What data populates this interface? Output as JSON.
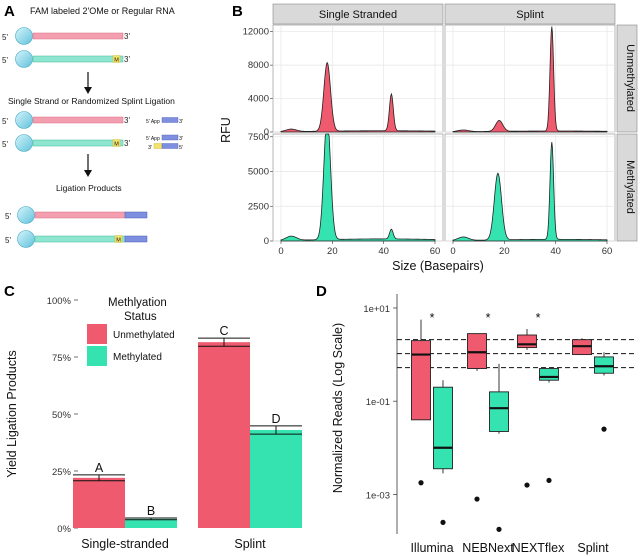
{
  "colors": {
    "unmethylated": "#ef5a6f",
    "methylated": "#35e3b1",
    "rna_pink": "#f49fb0",
    "rna_teal": "#8fe6d0",
    "bead": "#8fd6e8",
    "adapter": "#6f7fd6",
    "strip_bg": "#d9d9d9",
    "panel_bg": "#ffffff"
  },
  "panel_a": {
    "label": "A",
    "title": "FAM labeled 2'OMe or Regular RNA",
    "step2": "Single Strand or Randomized Splint Ligation",
    "step3": "Ligation Products",
    "five_prime": "5'",
    "three_prime": "3'",
    "mark_m": "M",
    "five_app": "5' App",
    "three_end": "3'"
  },
  "chart_data": [
    {
      "id": "B",
      "type": "area",
      "label": "B",
      "columns": [
        "Single Stranded",
        "Splint"
      ],
      "rows": [
        "Unmethylated",
        "Methylated"
      ],
      "xlabel": "Size (Basepairs)",
      "ylabel": "RFU",
      "xlim": [
        0,
        60
      ],
      "xticks": [
        "0",
        "20",
        "40",
        "60"
      ],
      "row_scales": [
        {
          "ylim": [
            0,
            12800
          ],
          "yticks": [
            "0",
            "4000",
            "8000",
            "12000"
          ]
        },
        {
          "ylim": [
            0,
            7700
          ],
          "yticks": [
            "0",
            "2500",
            "5000",
            "7500"
          ]
        }
      ],
      "series": [
        {
          "row": "Unmethylated",
          "column": "Single Stranded",
          "baseline": 150,
          "peaks": [
            {
              "x": 4,
              "h": 300,
              "w": 2
            },
            {
              "x": 18,
              "h": 8200,
              "w": 1.3
            },
            {
              "x": 43,
              "h": 4400,
              "w": 0.75
            }
          ]
        },
        {
          "row": "Unmethylated",
          "column": "Splint",
          "baseline": 120,
          "peaks": [
            {
              "x": 4,
              "h": 200,
              "w": 2
            },
            {
              "x": 18,
              "h": 1300,
              "w": 1.4
            },
            {
              "x": 38.5,
              "h": 12500,
              "w": 0.7
            }
          ]
        },
        {
          "row": "Methylated",
          "column": "Single Stranded",
          "baseline": 150,
          "peaks": [
            {
              "x": 4,
              "h": 300,
              "w": 2
            },
            {
              "x": 18,
              "h": 8800,
              "w": 1.3
            },
            {
              "x": 43,
              "h": 700,
              "w": 0.7
            }
          ]
        },
        {
          "row": "Methylated",
          "column": "Splint",
          "baseline": 120,
          "peaks": [
            {
              "x": 4,
              "h": 250,
              "w": 2
            },
            {
              "x": 17.5,
              "h": 4800,
              "w": 1.4
            },
            {
              "x": 38.5,
              "h": 7000,
              "w": 0.7
            }
          ]
        }
      ]
    },
    {
      "id": "C",
      "type": "bar",
      "label": "C",
      "legend_title": "Methlyation\nStatus",
      "legend_title_lines": [
        "Methlyation",
        "Status"
      ],
      "legend": [
        "Unmethylated",
        "Methylated"
      ],
      "categories": [
        "Single-stranded",
        "Splint"
      ],
      "ylabel": "Yield Ligation Products",
      "ylim": [
        0,
        1.0
      ],
      "yticks": [
        "0%",
        "25%",
        "50%",
        "75%",
        "100%"
      ],
      "series": [
        {
          "name": "Unmethylated",
          "values": [
            0.22,
            0.815
          ],
          "errors": [
            0.013,
            0.018
          ],
          "letters": [
            "A",
            "C"
          ]
        },
        {
          "name": "Methylated",
          "values": [
            0.04,
            0.43
          ],
          "errors": [
            0.004,
            0.018
          ],
          "letters": [
            "B",
            "D"
          ]
        }
      ]
    },
    {
      "id": "D",
      "type": "box",
      "label": "D",
      "ylabel": "Normalized Reads (Log Scale)",
      "categories": [
        "Illumina",
        "NEBNext",
        "NEXTflex",
        "Splint"
      ],
      "ylim_log10": [
        -3.85,
        1.3
      ],
      "yticks": [
        "1e-03",
        "1e-01",
        "1e+01"
      ],
      "ytick_values_log10": [
        -3,
        -1,
        1
      ],
      "significance": [
        "*",
        "*",
        "*",
        ""
      ],
      "reference_lines_log10": [
        0.32,
        0.02,
        -0.28
      ],
      "boxes": [
        {
          "category": "Illumina",
          "group": "Unmethylated",
          "whisker_low": -1.4,
          "q1": -1.4,
          "median": 0.0,
          "q3": 0.3,
          "whisker_high": 0.75,
          "outliers": [
            -2.75
          ]
        },
        {
          "category": "Illumina",
          "group": "Methylated",
          "whisker_low": -2.55,
          "q1": -2.45,
          "median": -2.0,
          "q3": -0.7,
          "whisker_high": -0.55,
          "outliers": [
            -3.6
          ]
        },
        {
          "category": "NEBNext",
          "group": "Unmethylated",
          "whisker_low": -0.35,
          "q1": -0.3,
          "median": 0.05,
          "q3": 0.45,
          "whisker_high": 0.45,
          "outliers": [
            -3.1
          ]
        },
        {
          "category": "NEBNext",
          "group": "Methylated",
          "whisker_low": -1.7,
          "q1": -1.65,
          "median": -1.15,
          "q3": -0.8,
          "whisker_high": -0.2,
          "outliers": [
            -3.75
          ]
        },
        {
          "category": "NEXTflex",
          "group": "Unmethylated",
          "whisker_low": 0.1,
          "q1": 0.15,
          "median": 0.22,
          "q3": 0.42,
          "whisker_high": 0.55,
          "outliers": [
            -2.8
          ]
        },
        {
          "category": "NEXTflex",
          "group": "Methylated",
          "whisker_low": -0.6,
          "q1": -0.55,
          "median": -0.48,
          "q3": -0.3,
          "whisker_high": -0.3,
          "outliers": [
            -2.7
          ]
        },
        {
          "category": "Splint",
          "group": "Unmethylated",
          "whisker_low": 0.0,
          "q1": 0.0,
          "median": 0.18,
          "q3": 0.32,
          "whisker_high": 0.35,
          "outliers": []
        },
        {
          "category": "Splint",
          "group": "Methylated",
          "whisker_low": -0.45,
          "q1": -0.4,
          "median": -0.25,
          "q3": -0.05,
          "whisker_high": 0.05,
          "outliers": [
            -1.6
          ]
        }
      ]
    }
  ]
}
